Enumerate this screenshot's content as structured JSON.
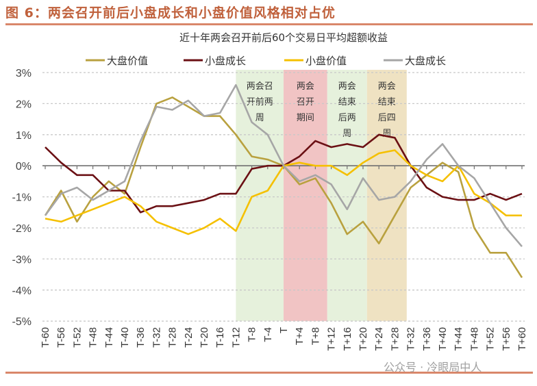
{
  "figure_title": "图 6：两会召开前后小盘成长和小盘价值风格相对占优",
  "watermark": "公众号 · 冷眼局中人",
  "chart_data": {
    "type": "line",
    "title": "近十年两会召开前后60个交易日平均超额收益",
    "xlabel": "",
    "ylabel": "",
    "ylim": [
      -5,
      3
    ],
    "yticks": [
      "3%",
      "2%",
      "1%",
      "0%",
      "-1%",
      "-2%",
      "-3%",
      "-4%",
      "-5%"
    ],
    "ytick_values": [
      3,
      2,
      1,
      0,
      -1,
      -2,
      -3,
      -4,
      -5
    ],
    "grid": true,
    "legend_position": "top",
    "x": [
      "T-60",
      "T-56",
      "T-52",
      "T-48",
      "T-44",
      "T-40",
      "T-36",
      "T-32",
      "T-28",
      "T-24",
      "T-20",
      "T-16",
      "T-12",
      "T-8",
      "T-4",
      "T",
      "T+4",
      "T+8",
      "T+12",
      "T+16",
      "T+20",
      "T+24",
      "T+28",
      "T+32",
      "T+36",
      "T+40",
      "T+44",
      "T+48",
      "T+52",
      "T+56",
      "T+60"
    ],
    "x_offsets": [
      -60,
      -56,
      -52,
      -48,
      -44,
      -40,
      -36,
      -32,
      -28,
      -24,
      -20,
      -16,
      -12,
      -8,
      -4,
      0,
      4,
      8,
      12,
      16,
      20,
      24,
      28,
      32,
      36,
      40,
      44,
      48,
      52,
      56,
      60
    ],
    "series": [
      {
        "name": "大盘价值",
        "color": "#b9a13f",
        "values": [
          -1.6,
          -0.8,
          -1.8,
          -1.0,
          -0.5,
          -0.9,
          0.6,
          2.0,
          2.2,
          1.9,
          1.6,
          1.6,
          1.0,
          0.3,
          0.2,
          0,
          -0.6,
          -0.4,
          -1.2,
          -2.2,
          -1.8,
          -2.5,
          -1.6,
          -0.7,
          -0.3,
          0.1,
          -0.2,
          -2.0,
          -2.8,
          -2.8,
          -3.6
        ]
      },
      {
        "name": "小盘成长",
        "color": "#6b1014",
        "values": [
          0.6,
          0.1,
          -0.3,
          -0.3,
          -0.8,
          -0.8,
          -1.5,
          -1.3,
          -1.3,
          -1.2,
          -1.1,
          -0.9,
          -0.9,
          -0.1,
          0,
          0,
          0.3,
          0.8,
          0.6,
          0.7,
          0.6,
          1.0,
          0.9,
          0,
          -0.7,
          -1.0,
          -1.1,
          -1.1,
          -0.9,
          -1.1,
          -0.9
        ]
      },
      {
        "name": "小盘价值",
        "color": "#f5c000",
        "values": [
          -1.7,
          -1.8,
          -1.6,
          -1.4,
          -1.2,
          -1.0,
          -1.3,
          -1.8,
          -2.0,
          -2.2,
          -2.0,
          -1.7,
          -2.1,
          -1.0,
          -0.8,
          0,
          0.1,
          0.0,
          0,
          -0.3,
          0.1,
          0.4,
          0.5,
          0,
          -0.3,
          -0.5,
          0,
          -0.9,
          -1.2,
          -1.6,
          -1.6
        ]
      },
      {
        "name": "大盘成长",
        "color": "#a6a6a6",
        "values": [
          -1.6,
          -0.9,
          -0.7,
          -1.1,
          -0.8,
          -0.5,
          0.8,
          1.9,
          1.8,
          2.1,
          1.6,
          1.7,
          2.6,
          1.4,
          1.0,
          0,
          -0.5,
          -0.3,
          -0.6,
          -1.4,
          -0.4,
          -1.1,
          -1.0,
          -0.5,
          0.2,
          0.7,
          0,
          -0.4,
          -1.2,
          -2.0,
          -2.6
        ]
      }
    ],
    "bands": [
      {
        "from": -12,
        "to": 0,
        "color": "#e6f1dc",
        "lines": [
          "两会召",
          "开前两",
          "周"
        ]
      },
      {
        "from": 0,
        "to": 11,
        "color": "#f1c4c4",
        "lines": [
          "两会",
          "召开",
          "期间"
        ]
      },
      {
        "from": 11,
        "to": 21,
        "color": "#e6f1dc",
        "lines": [
          "两会",
          "结束",
          "后两",
          "周"
        ]
      },
      {
        "from": 21,
        "to": 31,
        "color": "#efe2c2",
        "lines": [
          "两会",
          "结束",
          "后四",
          "周"
        ]
      }
    ]
  }
}
